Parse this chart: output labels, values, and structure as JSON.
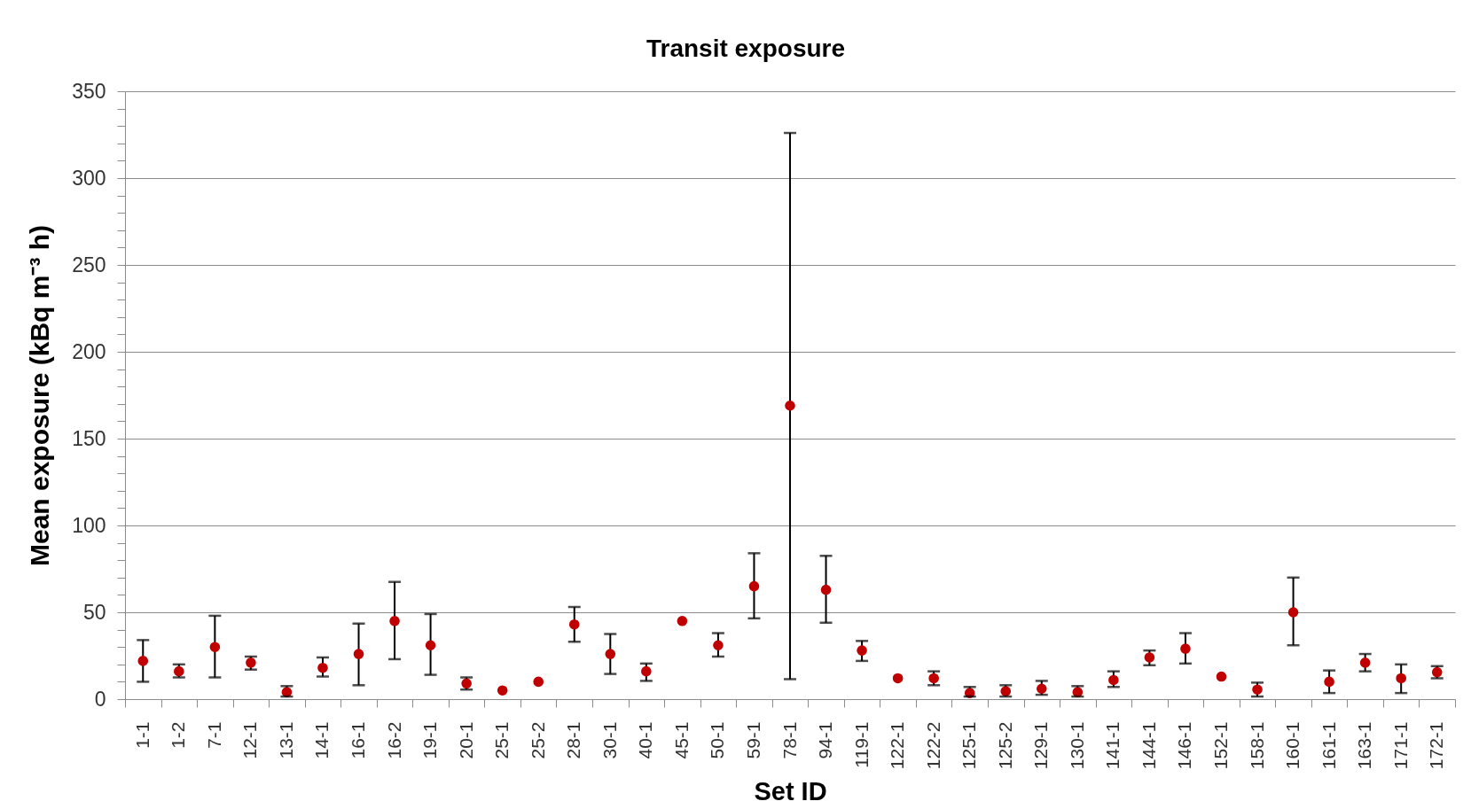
{
  "chart_data": {
    "type": "scatter",
    "title": "Transit exposure",
    "xlabel": "Set ID",
    "ylabel": "Mean exposure (kBq m⁻³ h)",
    "categories": [
      "1-1",
      "1-2",
      "7-1",
      "12-1",
      "13-1",
      "14-1",
      "16-1",
      "16-2",
      "19-1",
      "20-1",
      "25-1",
      "25-2",
      "28-1",
      "30-1",
      "40-1",
      "45-1",
      "50-1",
      "59-1",
      "78-1",
      "94-1",
      "119-1",
      "122-1",
      "122-2",
      "125-1",
      "125-2",
      "129-1",
      "130-1",
      "141-1",
      "144-1",
      "146-1",
      "152-1",
      "158-1",
      "160-1",
      "161-1",
      "163-1",
      "171-1",
      "172-1"
    ],
    "values": [
      22,
      16,
      30,
      21,
      4,
      18,
      26,
      45,
      31,
      9,
      5,
      10,
      43,
      26,
      16,
      45,
      31,
      65,
      169,
      63,
      28,
      12,
      12,
      3.5,
      4.5,
      6,
      4,
      11,
      24,
      29,
      13,
      5.5,
      50,
      10,
      21,
      12,
      15.5
    ],
    "errors": [
      [
        10,
        34
      ],
      [
        12.5,
        20
      ],
      [
        12.5,
        48
      ],
      [
        17,
        24.5
      ],
      [
        1.5,
        7.5
      ],
      [
        13,
        24
      ],
      [
        8,
        43.5
      ],
      [
        23,
        67.5
      ],
      [
        14,
        49
      ],
      [
        5.5,
        12.5
      ],
      null,
      null,
      [
        33,
        53
      ],
      [
        14.5,
        37.5
      ],
      [
        10.5,
        20.5
      ],
      null,
      [
        24.5,
        38
      ],
      [
        46.5,
        84
      ],
      [
        11.5,
        326
      ],
      [
        44,
        82.5
      ],
      [
        22,
        33.5
      ],
      null,
      [
        8,
        16
      ],
      [
        1.5,
        7
      ],
      [
        1.5,
        8
      ],
      [
        2.5,
        10.5
      ],
      [
        1.5,
        7.5
      ],
      [
        7,
        16
      ],
      [
        19.5,
        28
      ],
      [
        20.5,
        38
      ],
      null,
      [
        1.5,
        9.5
      ],
      [
        31,
        70
      ],
      [
        3.5,
        16.5
      ],
      [
        16,
        26
      ],
      [
        3.5,
        20
      ],
      [
        12,
        19
      ]
    ],
    "color": "#c00000",
    "marker": "circle",
    "ylim": [
      0,
      350
    ],
    "yticks": [
      0,
      {
        "value": 10,
        "label": null
      },
      {
        "value": 20,
        "label": null
      },
      {
        "value": 30,
        "label": null
      },
      {
        "value": 40,
        "label": null
      },
      50,
      {
        "value": 60,
        "label": null
      },
      {
        "value": 70,
        "label": null
      },
      {
        "value": 80,
        "label": null
      },
      {
        "value": 90,
        "label": null
      },
      100,
      {
        "value": 110,
        "label": null
      },
      {
        "value": 120,
        "label": null
      },
      {
        "value": 130,
        "label": null
      },
      {
        "value": 140,
        "label": null
      },
      150,
      {
        "value": 160,
        "label": null
      },
      {
        "value": 170,
        "label": null
      },
      {
        "value": 180,
        "label": null
      },
      {
        "value": 190,
        "label": null
      },
      200,
      {
        "value": 210,
        "label": null
      },
      {
        "value": 220,
        "label": null
      },
      {
        "value": 230,
        "label": null
      },
      {
        "value": 240,
        "label": null
      },
      250,
      {
        "value": 260,
        "label": null
      },
      {
        "value": 270,
        "label": null
      },
      {
        "value": 280,
        "label": null
      },
      {
        "value": 290,
        "label": null
      },
      300,
      {
        "value": 310,
        "label": null
      },
      {
        "value": 320,
        "label": null
      },
      {
        "value": 330,
        "label": null
      },
      {
        "value": 340,
        "label": null
      },
      350
    ],
    "grid": "y"
  }
}
